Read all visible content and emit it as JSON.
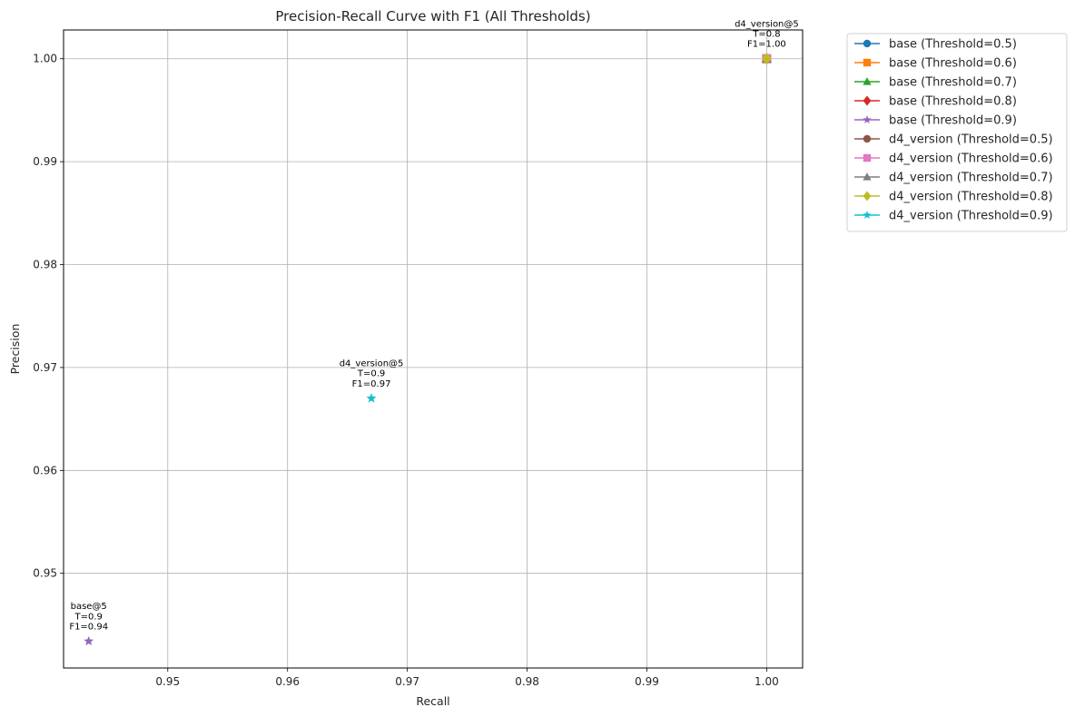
{
  "chart_data": {
    "type": "scatter",
    "title": "Precision-Recall Curve with F1 (All Thresholds)",
    "xlabel": "Recall",
    "ylabel": "Precision",
    "xlim": [
      0.9413,
      1.003
    ],
    "ylim": [
      0.9408,
      1.0028
    ],
    "x_ticks": [
      0.95,
      0.96,
      0.97,
      0.98,
      0.99,
      1.0
    ],
    "x_tick_labels": [
      "0.95",
      "0.96",
      "0.97",
      "0.98",
      "0.99",
      "1.00"
    ],
    "y_ticks": [
      0.95,
      0.96,
      0.97,
      0.98,
      0.99,
      1.0
    ],
    "y_tick_labels": [
      "0.95",
      "0.96",
      "0.97",
      "0.98",
      "0.99",
      "1.00"
    ],
    "grid": true,
    "legend_position": "outside-top-right",
    "series": [
      {
        "name": "base (Threshold=0.5)",
        "color": "#1f77b4",
        "marker": "circle",
        "x": [
          1.0
        ],
        "y": [
          1.0
        ]
      },
      {
        "name": "base (Threshold=0.6)",
        "color": "#ff7f0e",
        "marker": "square",
        "x": [
          1.0
        ],
        "y": [
          1.0
        ]
      },
      {
        "name": "base (Threshold=0.7)",
        "color": "#2ca02c",
        "marker": "triangle",
        "x": [
          1.0
        ],
        "y": [
          1.0
        ]
      },
      {
        "name": "base (Threshold=0.8)",
        "color": "#d62728",
        "marker": "diamond",
        "x": [
          1.0
        ],
        "y": [
          1.0
        ]
      },
      {
        "name": "base (Threshold=0.9)",
        "color": "#9467bd",
        "marker": "star",
        "x": [
          0.9434
        ],
        "y": [
          0.9434
        ]
      },
      {
        "name": "d4_version (Threshold=0.5)",
        "color": "#8c564b",
        "marker": "circle",
        "x": [
          1.0
        ],
        "y": [
          1.0
        ]
      },
      {
        "name": "d4_version (Threshold=0.6)",
        "color": "#e377c2",
        "marker": "square",
        "x": [
          1.0
        ],
        "y": [
          1.0
        ]
      },
      {
        "name": "d4_version (Threshold=0.7)",
        "color": "#7f7f7f",
        "marker": "triangle",
        "x": [
          1.0
        ],
        "y": [
          1.0
        ]
      },
      {
        "name": "d4_version (Threshold=0.8)",
        "color": "#bcbd22",
        "marker": "diamond",
        "x": [
          1.0
        ],
        "y": [
          1.0
        ]
      },
      {
        "name": "d4_version (Threshold=0.9)",
        "color": "#17becf",
        "marker": "star",
        "x": [
          0.967
        ],
        "y": [
          0.967
        ]
      }
    ],
    "annotations": [
      {
        "x": 1.0,
        "y": 1.0,
        "lines": [
          "d4_version@5",
          "T=0.8",
          "F1=1.00"
        ]
      },
      {
        "x": 0.967,
        "y": 0.967,
        "lines": [
          "d4_version@5",
          "T=0.9",
          "F1=0.97"
        ]
      },
      {
        "x": 0.9434,
        "y": 0.9434,
        "lines": [
          "base@5",
          "T=0.9",
          "F1=0.94"
        ]
      }
    ]
  }
}
